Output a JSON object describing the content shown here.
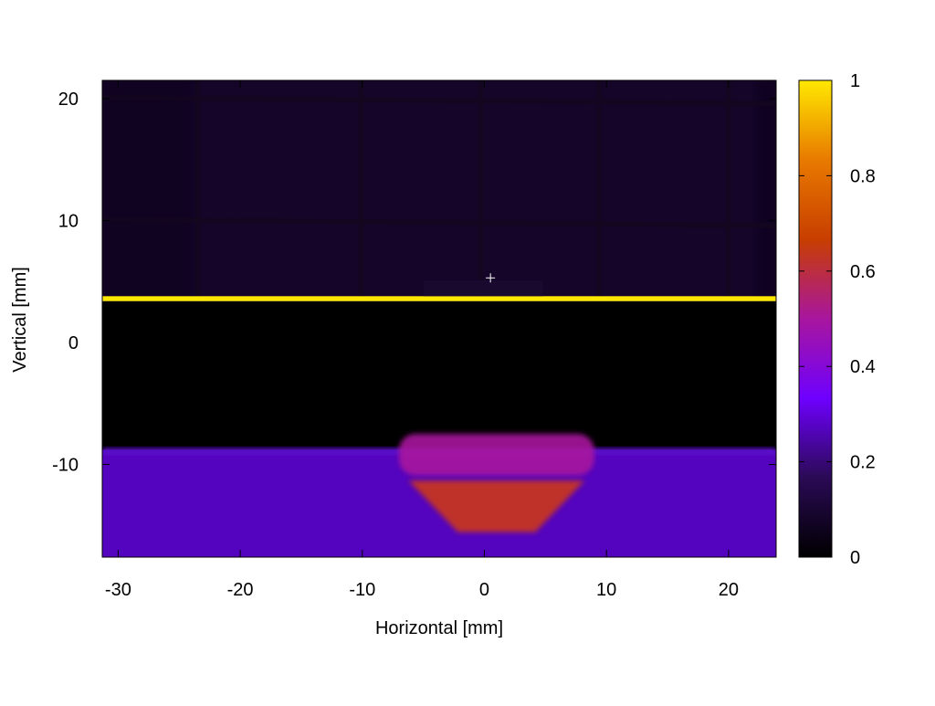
{
  "chart_data": {
    "type": "heatmap",
    "title": "",
    "xlabel": "Horizontal [mm]",
    "ylabel": "Vertical [mm]",
    "xlim": [
      -31.3,
      23.9
    ],
    "ylim": [
      -17.6,
      21.5
    ],
    "x_ticks": [
      -30,
      -20,
      -10,
      0,
      10,
      20
    ],
    "x_tick_labels": [
      "-30",
      "-20",
      "-10",
      "0",
      "10",
      "20"
    ],
    "y_ticks": [
      -10,
      0,
      10,
      20
    ],
    "y_tick_labels": [
      "-10",
      "0",
      "10",
      "20"
    ],
    "colorbar": {
      "range": [
        0,
        1
      ],
      "ticks": [
        0,
        0.2,
        0.4,
        0.6,
        0.8,
        1
      ],
      "tick_labels": [
        "0",
        "0.2",
        "0.4",
        "0.6",
        "0.8",
        "1"
      ],
      "colormap": [
        "#000000",
        "#2a0a55",
        "#6e00ff",
        "#a8169e",
        "#c83e00",
        "#e87a00",
        "#ffe800"
      ]
    },
    "regions": [
      {
        "name": "upper grid background",
        "x": [
          -31.3,
          23.9
        ],
        "y": [
          3.6,
          21.5
        ],
        "value": 0.08
      },
      {
        "name": "bright edge line",
        "x": [
          -31.3,
          23.9
        ],
        "y": [
          3.4,
          3.8
        ],
        "value": 1.0
      },
      {
        "name": "dark middle band",
        "x": [
          -31.3,
          23.9
        ],
        "y": [
          -8.8,
          3.4
        ],
        "value": 0.0
      },
      {
        "name": "lower band",
        "x": [
          -31.3,
          23.9
        ],
        "y": [
          -17.6,
          -8.8
        ],
        "value": 0.27
      },
      {
        "name": "central hot spot",
        "x": [
          -7.0,
          9.0
        ],
        "y": [
          -16.0,
          -7.5
        ],
        "value": 0.62
      }
    ],
    "grid_lines_x": [
      -23.5,
      -10.1,
      -0.3,
      9.4,
      20.0
    ],
    "grid_lines_y": [
      20.0,
      10.0
    ],
    "marker": {
      "x": 0.5,
      "y": 5.3,
      "symbol": "+"
    },
    "grid": false,
    "legend": "none"
  }
}
